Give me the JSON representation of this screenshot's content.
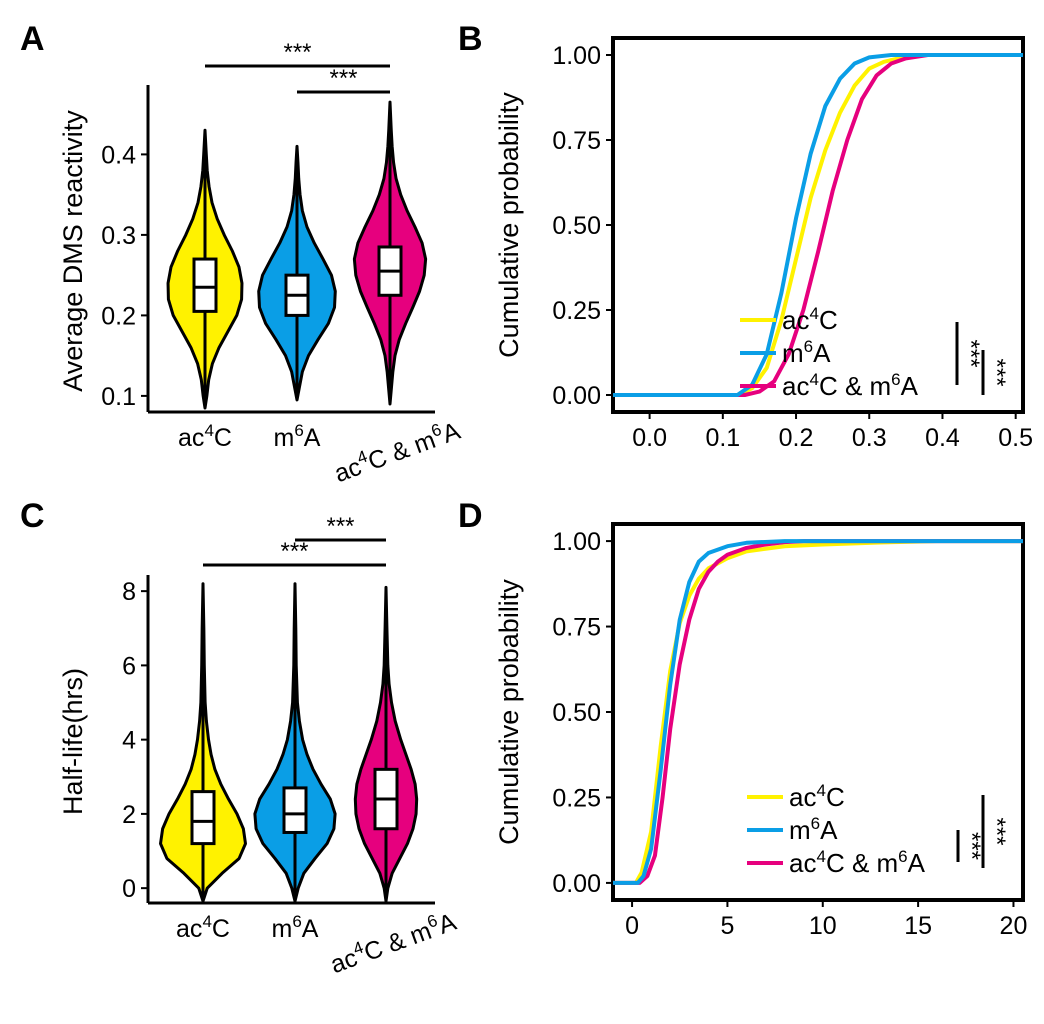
{
  "colors": {
    "ac4C": "#fff200",
    "m6A": "#0a9ee6",
    "both": "#e6007e"
  },
  "panels": {
    "A": {
      "label": "A"
    },
    "B": {
      "label": "B"
    },
    "C": {
      "label": "C"
    },
    "D": {
      "label": "D"
    }
  },
  "chart_data": [
    {
      "id": "A",
      "type": "violin",
      "ylabel": "Average DMS reactivity",
      "ylim": [
        0.08,
        0.48
      ],
      "yticks": [
        {
          "v": 0.1,
          "label": "0.1"
        },
        {
          "v": 0.2,
          "label": "0.2"
        },
        {
          "v": 0.3,
          "label": "0.3"
        },
        {
          "v": 0.4,
          "label": "0.4"
        }
      ],
      "groups": [
        {
          "key": "ac4C",
          "label_main": "ac",
          "label_sup": "4",
          "label_rest": "C",
          "min": 0.085,
          "q1": 0.205,
          "median": 0.235,
          "q3": 0.27,
          "max": 0.43,
          "wmax": 0.28,
          "shape": [
            [
              0.085,
              0
            ],
            [
              0.1,
              0.05
            ],
            [
              0.12,
              0.1
            ],
            [
              0.14,
              0.2
            ],
            [
              0.16,
              0.38
            ],
            [
              0.18,
              0.62
            ],
            [
              0.2,
              0.86
            ],
            [
              0.22,
              0.99
            ],
            [
              0.24,
              1.0
            ],
            [
              0.26,
              0.92
            ],
            [
              0.28,
              0.74
            ],
            [
              0.3,
              0.52
            ],
            [
              0.32,
              0.33
            ],
            [
              0.34,
              0.19
            ],
            [
              0.36,
              0.11
            ],
            [
              0.38,
              0.06
            ],
            [
              0.4,
              0.035
            ],
            [
              0.43,
              0
            ]
          ]
        },
        {
          "key": "m6A",
          "label_main": "m",
          "label_sup": "6",
          "label_rest": "A",
          "min": 0.095,
          "q1": 0.2,
          "median": 0.225,
          "q3": 0.25,
          "max": 0.41,
          "wmax": 0.29,
          "shape": [
            [
              0.095,
              0
            ],
            [
              0.11,
              0.06
            ],
            [
              0.13,
              0.14
            ],
            [
              0.15,
              0.3
            ],
            [
              0.17,
              0.55
            ],
            [
              0.19,
              0.82
            ],
            [
              0.21,
              0.98
            ],
            [
              0.23,
              1.0
            ],
            [
              0.25,
              0.9
            ],
            [
              0.27,
              0.68
            ],
            [
              0.29,
              0.45
            ],
            [
              0.31,
              0.26
            ],
            [
              0.33,
              0.14
            ],
            [
              0.35,
              0.08
            ],
            [
              0.37,
              0.045
            ],
            [
              0.39,
              0.025
            ],
            [
              0.41,
              0
            ]
          ]
        },
        {
          "key": "both",
          "label_main": "ac",
          "label_sup": "4",
          "label_rest": "C & m",
          "label_sup2": "6",
          "label_rest2": "A",
          "min": 0.09,
          "q1": 0.225,
          "median": 0.255,
          "q3": 0.285,
          "max": 0.465,
          "wmax": 0.27,
          "shape": [
            [
              0.09,
              0
            ],
            [
              0.11,
              0.04
            ],
            [
              0.13,
              0.08
            ],
            [
              0.15,
              0.14
            ],
            [
              0.17,
              0.26
            ],
            [
              0.19,
              0.44
            ],
            [
              0.21,
              0.64
            ],
            [
              0.23,
              0.83
            ],
            [
              0.25,
              0.96
            ],
            [
              0.27,
              1.0
            ],
            [
              0.29,
              0.9
            ],
            [
              0.31,
              0.7
            ],
            [
              0.33,
              0.48
            ],
            [
              0.35,
              0.3
            ],
            [
              0.37,
              0.17
            ],
            [
              0.39,
              0.1
            ],
            [
              0.41,
              0.06
            ],
            [
              0.43,
              0.035
            ],
            [
              0.465,
              0
            ]
          ]
        }
      ],
      "significance": [
        {
          "from": 0,
          "to": 2,
          "label": "***"
        },
        {
          "from": 1,
          "to": 2,
          "label": "***"
        }
      ]
    },
    {
      "id": "B",
      "type": "line",
      "ylabel": "Cumulative probability",
      "xlim": [
        -0.05,
        0.51
      ],
      "ylim": [
        -0.05,
        1.05
      ],
      "xticks": [
        {
          "v": 0.0,
          "label": "0.0"
        },
        {
          "v": 0.1,
          "label": "0.1"
        },
        {
          "v": 0.2,
          "label": "0.2"
        },
        {
          "v": 0.3,
          "label": "0.3"
        },
        {
          "v": 0.4,
          "label": "0.4"
        },
        {
          "v": 0.5,
          "label": "0.5"
        }
      ],
      "yticks": [
        {
          "v": 0.0,
          "label": "0.00"
        },
        {
          "v": 0.25,
          "label": "0.25"
        },
        {
          "v": 0.5,
          "label": "0.50"
        },
        {
          "v": 0.75,
          "label": "0.75"
        },
        {
          "v": 1.0,
          "label": "1.00"
        }
      ],
      "series": [
        {
          "key": "ac4C",
          "name_main": "ac",
          "name_sup": "4",
          "name_rest": "C",
          "points": [
            [
              -0.05,
              0
            ],
            [
              0.12,
              0
            ],
            [
              0.14,
              0.02
            ],
            [
              0.16,
              0.08
            ],
            [
              0.18,
              0.22
            ],
            [
              0.2,
              0.4
            ],
            [
              0.22,
              0.58
            ],
            [
              0.24,
              0.72
            ],
            [
              0.26,
              0.83
            ],
            [
              0.28,
              0.91
            ],
            [
              0.3,
              0.96
            ],
            [
              0.32,
              0.98
            ],
            [
              0.34,
              0.99
            ],
            [
              0.37,
              1.0
            ],
            [
              0.51,
              1.0
            ]
          ]
        },
        {
          "key": "m6A",
          "name_main": "m",
          "name_sup": "6",
          "name_rest": "A",
          "points": [
            [
              -0.05,
              0
            ],
            [
              0.12,
              0
            ],
            [
              0.14,
              0.03
            ],
            [
              0.16,
              0.12
            ],
            [
              0.18,
              0.3
            ],
            [
              0.2,
              0.52
            ],
            [
              0.22,
              0.71
            ],
            [
              0.24,
              0.85
            ],
            [
              0.26,
              0.93
            ],
            [
              0.28,
              0.975
            ],
            [
              0.3,
              0.993
            ],
            [
              0.33,
              1.0
            ],
            [
              0.51,
              1.0
            ]
          ]
        },
        {
          "key": "both",
          "name_main": "ac",
          "name_sup": "4",
          "name_rest": "C & m",
          "name_sup2": "6",
          "name_rest2": "A",
          "points": [
            [
              -0.05,
              0
            ],
            [
              0.13,
              0
            ],
            [
              0.15,
              0.01
            ],
            [
              0.17,
              0.04
            ],
            [
              0.19,
              0.12
            ],
            [
              0.21,
              0.25
            ],
            [
              0.23,
              0.42
            ],
            [
              0.25,
              0.6
            ],
            [
              0.27,
              0.75
            ],
            [
              0.29,
              0.87
            ],
            [
              0.31,
              0.94
            ],
            [
              0.33,
              0.975
            ],
            [
              0.35,
              0.99
            ],
            [
              0.38,
              1.0
            ],
            [
              0.51,
              1.0
            ]
          ]
        }
      ],
      "significance": [
        "***",
        "***"
      ]
    },
    {
      "id": "C",
      "type": "violin",
      "ylabel": "Half-life(hrs)",
      "ylim": [
        -0.4,
        8.3
      ],
      "yticks": [
        {
          "v": 0,
          "label": "0"
        },
        {
          "v": 2,
          "label": "2"
        },
        {
          "v": 4,
          "label": "4"
        },
        {
          "v": 6,
          "label": "6"
        },
        {
          "v": 8,
          "label": "8"
        }
      ],
      "groups": [
        {
          "key": "ac4C",
          "label_main": "ac",
          "label_sup": "4",
          "label_rest": "C",
          "min": -0.35,
          "q1": 1.2,
          "median": 1.8,
          "q3": 2.6,
          "max": 8.2,
          "wmax": 0.36,
          "shape": [
            [
              -0.35,
              0
            ],
            [
              0.0,
              0.1
            ],
            [
              0.4,
              0.45
            ],
            [
              0.8,
              0.85
            ],
            [
              1.2,
              1.0
            ],
            [
              1.6,
              0.95
            ],
            [
              2.0,
              0.8
            ],
            [
              2.4,
              0.6
            ],
            [
              2.8,
              0.42
            ],
            [
              3.2,
              0.28
            ],
            [
              3.6,
              0.19
            ],
            [
              4.0,
              0.13
            ],
            [
              4.5,
              0.08
            ],
            [
              5.0,
              0.05
            ],
            [
              6.0,
              0.03
            ],
            [
              7.0,
              0.02
            ],
            [
              8.2,
              0
            ]
          ]
        },
        {
          "key": "m6A",
          "label_main": "m",
          "label_sup": "6",
          "label_rest": "A",
          "min": -0.35,
          "q1": 1.5,
          "median": 2.0,
          "q3": 2.7,
          "max": 8.2,
          "wmax": 0.34,
          "shape": [
            [
              -0.35,
              0
            ],
            [
              0.0,
              0.08
            ],
            [
              0.4,
              0.22
            ],
            [
              0.8,
              0.5
            ],
            [
              1.2,
              0.8
            ],
            [
              1.6,
              0.97
            ],
            [
              2.0,
              1.0
            ],
            [
              2.4,
              0.88
            ],
            [
              2.8,
              0.65
            ],
            [
              3.2,
              0.45
            ],
            [
              3.6,
              0.3
            ],
            [
              4.0,
              0.19
            ],
            [
              4.5,
              0.11
            ],
            [
              5.0,
              0.06
            ],
            [
              6.0,
              0.03
            ],
            [
              7.0,
              0.02
            ],
            [
              8.2,
              0
            ]
          ]
        },
        {
          "key": "both",
          "label_main": "ac",
          "label_sup": "4",
          "label_rest": "C & m",
          "label_sup2": "6",
          "label_rest2": "A",
          "min": -0.35,
          "q1": 1.6,
          "median": 2.4,
          "q3": 3.2,
          "max": 8.1,
          "wmax": 0.26,
          "shape": [
            [
              -0.35,
              0
            ],
            [
              0.0,
              0.06
            ],
            [
              0.4,
              0.2
            ],
            [
              0.8,
              0.45
            ],
            [
              1.2,
              0.7
            ],
            [
              1.6,
              0.88
            ],
            [
              2.0,
              0.98
            ],
            [
              2.4,
              1.0
            ],
            [
              2.8,
              0.95
            ],
            [
              3.2,
              0.82
            ],
            [
              3.6,
              0.65
            ],
            [
              4.0,
              0.48
            ],
            [
              4.5,
              0.3
            ],
            [
              5.0,
              0.18
            ],
            [
              5.5,
              0.1
            ],
            [
              6.0,
              0.06
            ],
            [
              7.0,
              0.03
            ],
            [
              8.1,
              0
            ]
          ]
        }
      ],
      "significance": [
        {
          "from": 0,
          "to": 2,
          "label": "***"
        },
        {
          "from": 1,
          "to": 2,
          "label": "***"
        }
      ]
    },
    {
      "id": "D",
      "type": "line",
      "ylabel": "Cumulative probability",
      "xlim": [
        -1,
        20.5
      ],
      "ylim": [
        -0.05,
        1.05
      ],
      "xticks": [
        {
          "v": 0,
          "label": "0"
        },
        {
          "v": 5,
          "label": "5"
        },
        {
          "v": 10,
          "label": "10"
        },
        {
          "v": 15,
          "label": "15"
        },
        {
          "v": 20,
          "label": "20"
        }
      ],
      "yticks": [
        {
          "v": 0.0,
          "label": "0.00"
        },
        {
          "v": 0.25,
          "label": "0.25"
        },
        {
          "v": 0.5,
          "label": "0.50"
        },
        {
          "v": 0.75,
          "label": "0.75"
        },
        {
          "v": 1.0,
          "label": "1.00"
        }
      ],
      "series": [
        {
          "key": "ac4C",
          "name_main": "ac",
          "name_sup": "4",
          "name_rest": "C",
          "points": [
            [
              -1,
              0
            ],
            [
              0.2,
              0.0
            ],
            [
              0.5,
              0.03
            ],
            [
              1.0,
              0.15
            ],
            [
              1.5,
              0.4
            ],
            [
              2.0,
              0.62
            ],
            [
              2.5,
              0.76
            ],
            [
              3.0,
              0.84
            ],
            [
              3.5,
              0.89
            ],
            [
              4.0,
              0.92
            ],
            [
              5.0,
              0.95
            ],
            [
              6.0,
              0.97
            ],
            [
              8.0,
              0.985
            ],
            [
              10.0,
              0.99
            ],
            [
              13.0,
              0.996
            ],
            [
              16.0,
              1.0
            ],
            [
              20.5,
              1.0
            ]
          ]
        },
        {
          "key": "m6A",
          "name_main": "m",
          "name_sup": "6",
          "name_rest": "A",
          "points": [
            [
              -1,
              0
            ],
            [
              0.3,
              0.0
            ],
            [
              0.6,
              0.02
            ],
            [
              1.0,
              0.1
            ],
            [
              1.5,
              0.33
            ],
            [
              2.0,
              0.58
            ],
            [
              2.5,
              0.77
            ],
            [
              3.0,
              0.88
            ],
            [
              3.5,
              0.94
            ],
            [
              4.0,
              0.965
            ],
            [
              5.0,
              0.985
            ],
            [
              6.0,
              0.995
            ],
            [
              8.0,
              1.0
            ],
            [
              20.5,
              1.0
            ]
          ]
        },
        {
          "key": "both",
          "name_main": "ac",
          "name_sup": "4",
          "name_rest": "C & m",
          "name_sup2": "6",
          "name_rest2": "A",
          "points": [
            [
              -1,
              0
            ],
            [
              0.4,
              0.0
            ],
            [
              0.8,
              0.02
            ],
            [
              1.2,
              0.08
            ],
            [
              1.6,
              0.25
            ],
            [
              2.0,
              0.45
            ],
            [
              2.5,
              0.64
            ],
            [
              3.0,
              0.77
            ],
            [
              3.5,
              0.86
            ],
            [
              4.0,
              0.91
            ],
            [
              4.5,
              0.94
            ],
            [
              5.0,
              0.96
            ],
            [
              6.0,
              0.98
            ],
            [
              7.0,
              0.99
            ],
            [
              8.0,
              0.997
            ],
            [
              9.0,
              1.0
            ],
            [
              20.5,
              1.0
            ]
          ]
        }
      ],
      "significance": [
        "***",
        "***"
      ]
    }
  ]
}
